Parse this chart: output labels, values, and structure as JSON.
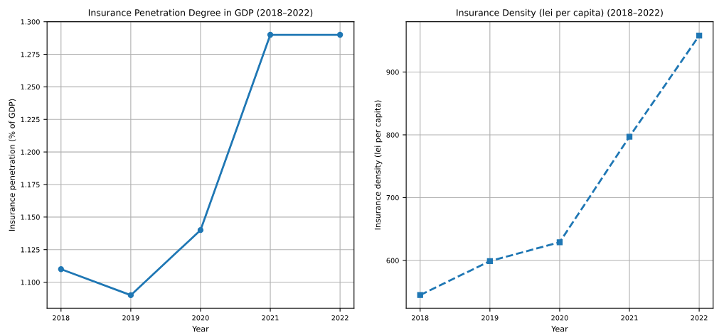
{
  "chart_data": [
    {
      "type": "line",
      "title": "Insurance Penetration Degree in GDP (2018–2022)",
      "xlabel": "Year",
      "ylabel": "Insurance penetration (% of GDP)",
      "x": [
        2018,
        2019,
        2020,
        2021,
        2022
      ],
      "series": [
        {
          "color": "#1f77b4",
          "values": [
            1.11,
            1.09,
            1.14,
            1.29,
            1.29
          ]
        }
      ],
      "xlim": [
        2017.8,
        2022.2
      ],
      "xticks": [
        2018,
        2019,
        2020,
        2021,
        2022
      ],
      "ylim": [
        1.08,
        1.3
      ],
      "yticks": [
        {
          "value": 1.1,
          "label": "1.100"
        },
        {
          "value": 1.125,
          "label": "1.125"
        },
        {
          "value": 1.15,
          "label": "1.150"
        },
        {
          "value": 1.175,
          "label": "1.175"
        },
        {
          "value": 1.2,
          "label": "1.200"
        },
        {
          "value": 1.225,
          "label": "1.225"
        },
        {
          "value": 1.25,
          "label": "1.250"
        },
        {
          "value": 1.275,
          "label": "1.275"
        },
        {
          "value": 1.3,
          "label": "1.300"
        }
      ],
      "grid": true,
      "marker": "circle",
      "line_style": "solid"
    },
    {
      "type": "line",
      "title": "Insurance Density (lei per capita) (2018–2022)",
      "xlabel": "Year",
      "ylabel": "Insurance density (lei per capita)",
      "x": [
        2018,
        2019,
        2020,
        2021,
        2022
      ],
      "series": [
        {
          "color": "#1f77b4",
          "values": [
            545,
            599,
            629,
            797,
            958
          ]
        }
      ],
      "xlim": [
        2017.8,
        2022.2
      ],
      "xticks": [
        2018,
        2019,
        2020,
        2021,
        2022
      ],
      "ylim": [
        524,
        980
      ],
      "yticks": [
        600,
        700,
        800,
        900
      ],
      "grid": true,
      "marker": "square",
      "line_style": "dashed"
    }
  ]
}
